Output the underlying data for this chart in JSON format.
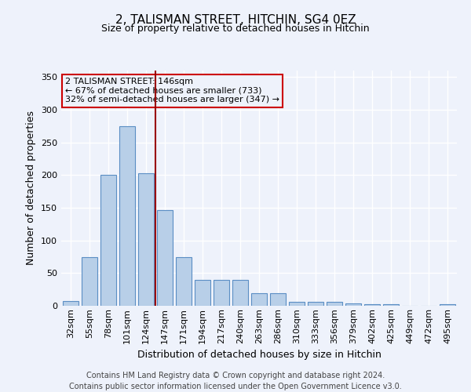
{
  "title1": "2, TALISMAN STREET, HITCHIN, SG4 0EZ",
  "title2": "Size of property relative to detached houses in Hitchin",
  "xlabel": "Distribution of detached houses by size in Hitchin",
  "ylabel": "Number of detached properties",
  "categories": [
    "32sqm",
    "55sqm",
    "78sqm",
    "101sqm",
    "124sqm",
    "147sqm",
    "171sqm",
    "194sqm",
    "217sqm",
    "240sqm",
    "263sqm",
    "286sqm",
    "310sqm",
    "333sqm",
    "356sqm",
    "379sqm",
    "402sqm",
    "425sqm",
    "449sqm",
    "472sqm",
    "495sqm"
  ],
  "values": [
    7,
    75,
    200,
    275,
    203,
    147,
    75,
    40,
    40,
    40,
    19,
    19,
    6,
    6,
    6,
    4,
    3,
    2,
    0,
    0,
    2
  ],
  "bar_color": "#b8cfe8",
  "bar_edge_color": "#5b8ec4",
  "vline_x": 4.5,
  "vline_color": "#990000",
  "ylim": [
    0,
    360
  ],
  "yticks": [
    0,
    50,
    100,
    150,
    200,
    250,
    300,
    350
  ],
  "annotation_line1": "2 TALISMAN STREET: 146sqm",
  "annotation_line2": "← 67% of detached houses are smaller (733)",
  "annotation_line3": "32% of semi-detached houses are larger (347) →",
  "box_color": "#cc0000",
  "footer": "Contains HM Land Registry data © Crown copyright and database right 2024.\nContains public sector information licensed under the Open Government Licence v3.0.",
  "background_color": "#eef2fb",
  "grid_color": "#ffffff",
  "title1_fontsize": 11,
  "title2_fontsize": 9,
  "ylabel_fontsize": 9,
  "xlabel_fontsize": 9,
  "tick_fontsize": 8,
  "annot_fontsize": 8
}
